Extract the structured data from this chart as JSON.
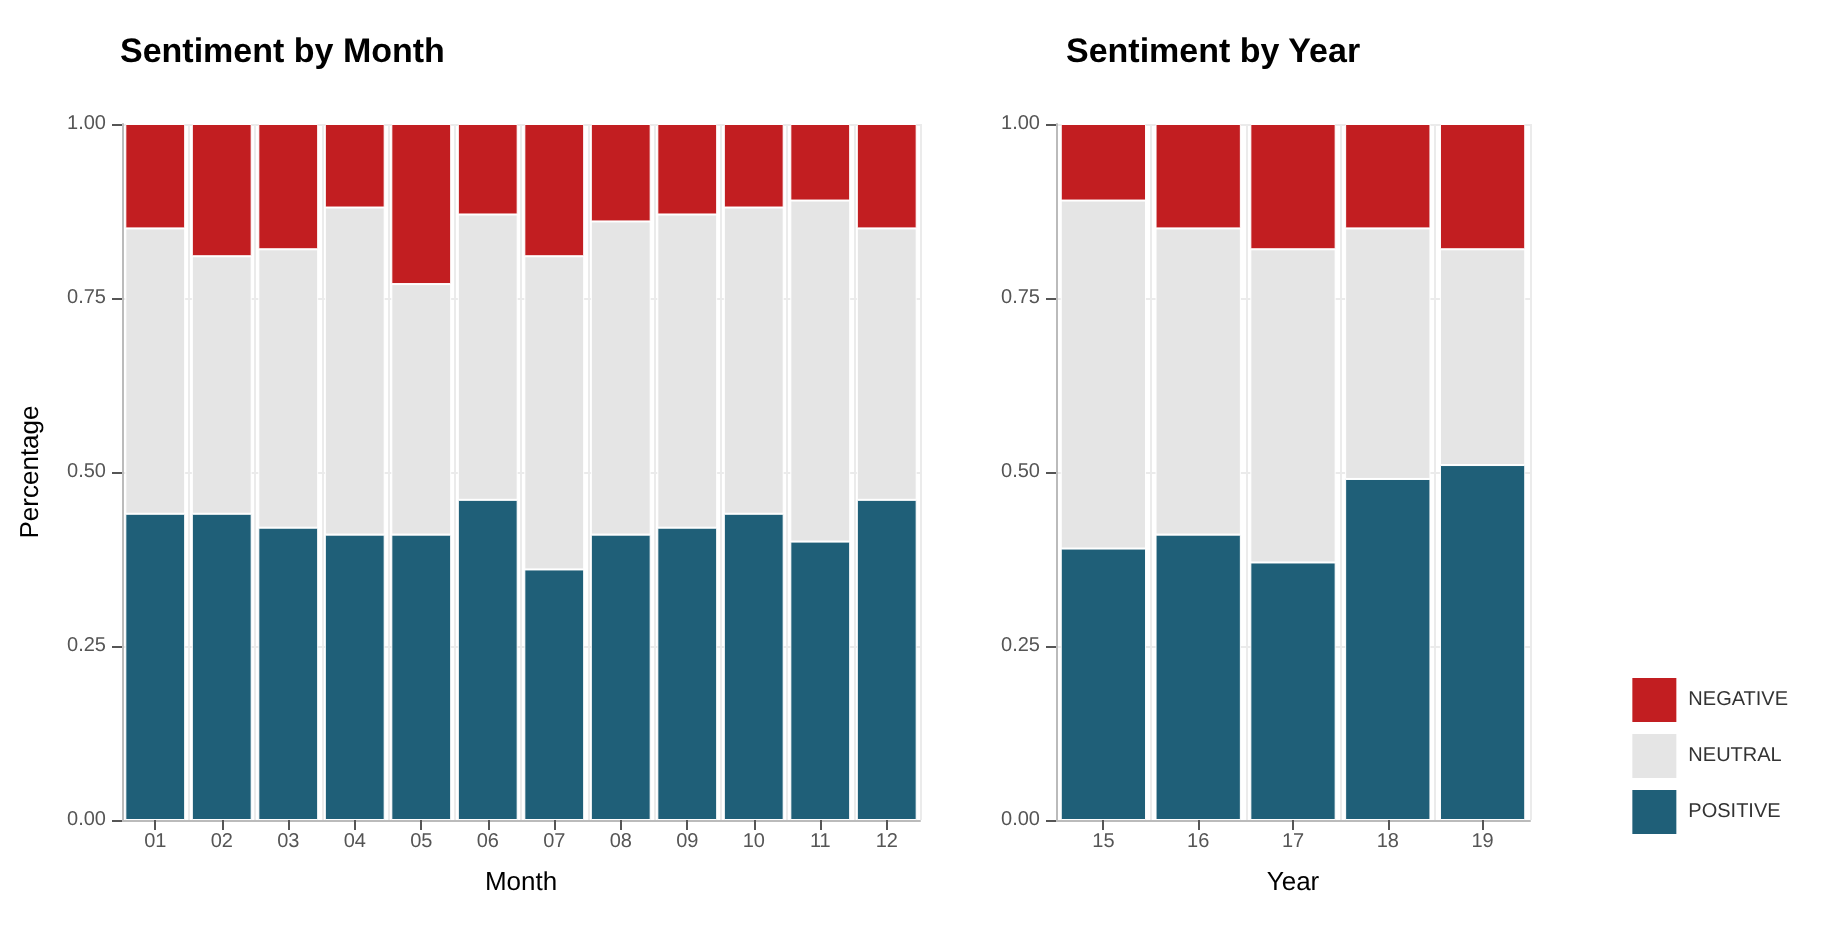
{
  "chart_data": [
    {
      "type": "bar",
      "title": "Sentiment by Month",
      "xlabel": "Month",
      "ylabel": "Percentage",
      "stacked": true,
      "grid": true,
      "legend": false,
      "categories": [
        "01",
        "02",
        "03",
        "04",
        "05",
        "06",
        "07",
        "08",
        "09",
        "10",
        "11",
        "12"
      ],
      "ylim": [
        0,
        1
      ],
      "yticks": [
        {
          "value": 0,
          "label": "0.00"
        },
        {
          "value": 0.25,
          "label": "0.25"
        },
        {
          "value": 0.5,
          "label": "0.50"
        },
        {
          "value": 0.75,
          "label": "0.75"
        },
        {
          "value": 1,
          "label": "1.00"
        }
      ],
      "series": [
        {
          "color": "#1f5f78",
          "values": [
            0.44,
            0.44,
            0.42,
            0.41,
            0.41,
            0.46,
            0.36,
            0.41,
            0.42,
            0.44,
            0.4,
            0.46
          ]
        },
        {
          "color": "#e5e5e5",
          "values": [
            0.41,
            0.37,
            0.4,
            0.47,
            0.36,
            0.41,
            0.45,
            0.45,
            0.45,
            0.44,
            0.49,
            0.39
          ]
        },
        {
          "color": "#c21e21",
          "values": [
            0.15,
            0.19,
            0.18,
            0.12,
            0.23,
            0.13,
            0.19,
            0.14,
            0.13,
            0.12,
            0.11,
            0.15
          ]
        }
      ]
    },
    {
      "type": "bar",
      "title": "Sentiment by Year",
      "xlabel": "Year",
      "stacked": true,
      "grid": true,
      "legend": "right",
      "categories": [
        "15",
        "16",
        "17",
        "18",
        "19"
      ],
      "ylim": [
        0,
        1
      ],
      "yticks": [
        {
          "value": 0,
          "label": "0.00"
        },
        {
          "value": 0.25,
          "label": "0.25"
        },
        {
          "value": 0.5,
          "label": "0.50"
        },
        {
          "value": 0.75,
          "label": "0.75"
        },
        {
          "value": 1,
          "label": "1.00"
        }
      ],
      "series": [
        {
          "name": "POSITIVE",
          "color": "#1f5f78",
          "values": [
            0.39,
            0.41,
            0.37,
            0.49,
            0.51
          ]
        },
        {
          "name": "NEUTRAL",
          "color": "#e5e5e5",
          "values": [
            0.5,
            0.44,
            0.45,
            0.36,
            0.31
          ]
        },
        {
          "name": "NEGATIVE",
          "color": "#c21e21",
          "values": [
            0.11,
            0.15,
            0.18,
            0.15,
            0.18
          ]
        }
      ]
    }
  ]
}
